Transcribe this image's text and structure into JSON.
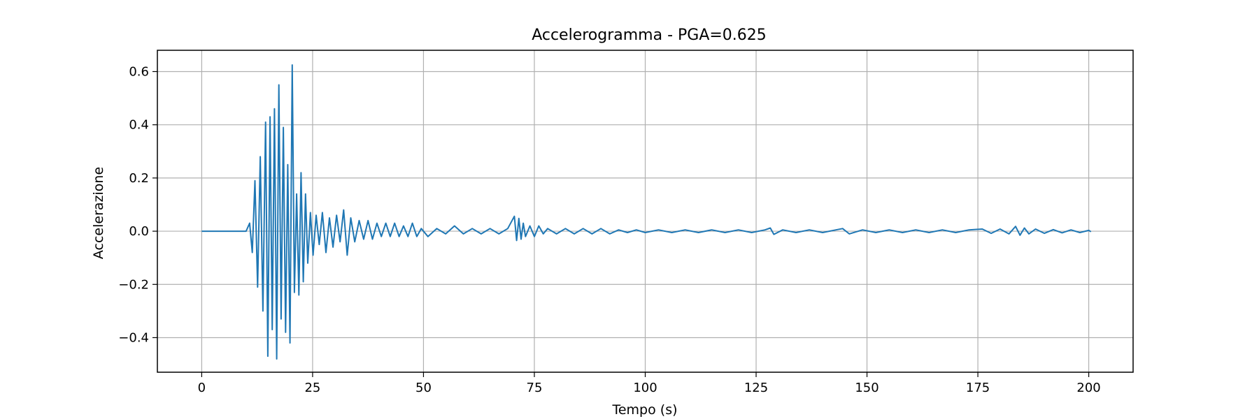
{
  "chart_data": {
    "type": "line",
    "title": "Accelerogramma - PGA=0.625",
    "xlabel": "Tempo (s)",
    "ylabel": "Accelerazione",
    "xlim": [
      -10,
      210
    ],
    "ylim": [
      -0.53,
      0.68
    ],
    "xticks": [
      0,
      25,
      50,
      75,
      100,
      125,
      150,
      175,
      200
    ],
    "xtick_labels": [
      "0",
      "25",
      "50",
      "75",
      "100",
      "125",
      "150",
      "175",
      "200"
    ],
    "yticks": [
      -0.4,
      -0.2,
      0.0,
      0.2,
      0.4,
      0.6
    ],
    "ytick_labels": [
      "−0.4",
      "−0.2",
      "0.0",
      "0.2",
      "0.4",
      "0.6"
    ],
    "grid": true,
    "line_color": "#1f77b4",
    "series": [
      {
        "name": "",
        "x": [
          0,
          10,
          10.8,
          11.4,
          12.0,
          12.6,
          13.2,
          13.8,
          14.4,
          14.9,
          15.4,
          15.9,
          16.4,
          16.9,
          17.4,
          17.9,
          18.4,
          18.9,
          19.4,
          19.9,
          20.4,
          20.9,
          21.4,
          21.9,
          22.4,
          22.9,
          23.4,
          23.9,
          24.5,
          25.1,
          25.8,
          26.5,
          27.2,
          28.0,
          28.8,
          29.6,
          30.4,
          31.2,
          32.0,
          32.8,
          33.6,
          34.5,
          35.5,
          36.5,
          37.5,
          38.5,
          39.5,
          40.5,
          41.5,
          42.5,
          43.5,
          44.5,
          45.5,
          46.5,
          47.5,
          48.5,
          49.5,
          51,
          53,
          55,
          57,
          59,
          61,
          63,
          65,
          67,
          69,
          70.5,
          71.0,
          71.5,
          72.0,
          72.5,
          73.0,
          74,
          75,
          76,
          77,
          78,
          80,
          82,
          84,
          86,
          88,
          90,
          92,
          94,
          96,
          98,
          100,
          103,
          106,
          109,
          112,
          115,
          118,
          121,
          124,
          127,
          128.2,
          129,
          131,
          134,
          137,
          140,
          143,
          144.5,
          146,
          149,
          152,
          155,
          158,
          161,
          164,
          167,
          170,
          173,
          176,
          178,
          180,
          182,
          183.5,
          184.5,
          185.5,
          186.5,
          188,
          190,
          192,
          194,
          196,
          198,
          200,
          200.5
        ],
        "y": [
          0,
          0,
          0.03,
          -0.08,
          0.19,
          -0.21,
          0.28,
          -0.3,
          0.41,
          -0.47,
          0.43,
          -0.37,
          0.46,
          -0.48,
          0.55,
          -0.33,
          0.39,
          -0.38,
          0.25,
          -0.42,
          0.625,
          -0.23,
          0.14,
          -0.24,
          0.22,
          -0.19,
          0.14,
          -0.12,
          0.07,
          -0.09,
          0.06,
          -0.05,
          0.07,
          -0.08,
          0.05,
          -0.06,
          0.06,
          -0.04,
          0.08,
          -0.09,
          0.05,
          -0.04,
          0.04,
          -0.03,
          0.04,
          -0.03,
          0.03,
          -0.02,
          0.03,
          -0.02,
          0.03,
          -0.02,
          0.02,
          -0.02,
          0.03,
          -0.02,
          0.01,
          -0.02,
          0.01,
          -0.01,
          0.02,
          -0.01,
          0.01,
          -0.01,
          0.01,
          -0.01,
          0.01,
          0.056,
          -0.035,
          0.048,
          -0.03,
          0.03,
          -0.02,
          0.02,
          -0.02,
          0.02,
          -0.01,
          0.01,
          -0.01,
          0.01,
          -0.01,
          0.01,
          -0.01,
          0.01,
          -0.01,
          0.005,
          -0.005,
          0.005,
          -0.005,
          0.005,
          -0.005,
          0.005,
          -0.005,
          0.005,
          -0.005,
          0.005,
          -0.005,
          0.005,
          0.012,
          -0.012,
          0.005,
          -0.005,
          0.005,
          -0.005,
          0.005,
          0.01,
          -0.01,
          0.005,
          -0.005,
          0.005,
          -0.005,
          0.005,
          -0.005,
          0.005,
          -0.005,
          0.005,
          0.008,
          -0.008,
          0.008,
          -0.01,
          0.018,
          -0.015,
          0.012,
          -0.01,
          0.008,
          -0.008,
          0.006,
          -0.006,
          0.005,
          -0.005,
          0.003,
          -0.002
        ]
      }
    ]
  }
}
